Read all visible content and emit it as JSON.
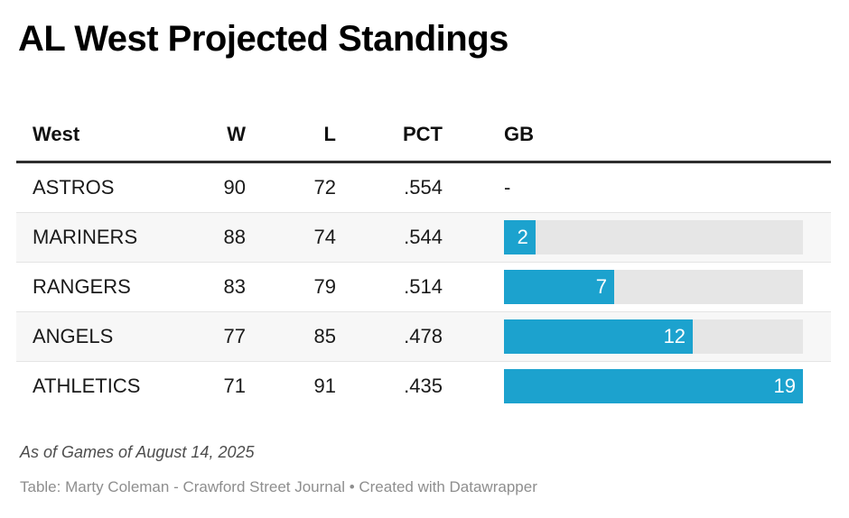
{
  "title": "AL West Projected Standings",
  "table": {
    "columns": {
      "team": "West",
      "w": "W",
      "l": "L",
      "pct": "PCT",
      "gb": "GB"
    },
    "rows": [
      {
        "team": "ASTROS",
        "w": "90",
        "l": "72",
        "pct": ".554",
        "gb": null,
        "gb_display": "-"
      },
      {
        "team": "MARINERS",
        "w": "88",
        "l": "74",
        "pct": ".544",
        "gb": 2,
        "gb_display": "2"
      },
      {
        "team": "RANGERS",
        "w": "83",
        "l": "79",
        "pct": ".514",
        "gb": 7,
        "gb_display": "7"
      },
      {
        "team": "ANGELS",
        "w": "77",
        "l": "85",
        "pct": ".478",
        "gb": 12,
        "gb_display": "12"
      },
      {
        "team": "ATHLETICS",
        "w": "71",
        "l": "91",
        "pct": ".435",
        "gb": 19,
        "gb_display": "19"
      }
    ],
    "gb_axis_max": 19
  },
  "footer": {
    "note": "As of Games of August 14, 2025",
    "attribution": "Table: Marty Coleman - Crawford Street Journal • Created with Datawrapper"
  },
  "colors": {
    "bar_fill": "#1ca2ce",
    "bar_track": "#e6e6e6",
    "row_stripe": "#f7f7f7",
    "header_rule": "#2e2e2e"
  },
  "chart_data": {
    "type": "table",
    "title": "AL West Projected Standings",
    "columns": [
      "West",
      "W",
      "L",
      "PCT",
      "GB"
    ],
    "rows": [
      [
        "ASTROS",
        90,
        72,
        ".554",
        "-"
      ],
      [
        "MARINERS",
        88,
        74,
        ".544",
        2
      ],
      [
        "RANGERS",
        83,
        79,
        ".514",
        7
      ],
      [
        "ANGELS",
        77,
        85,
        ".478",
        12
      ],
      [
        "ATHLETICS",
        71,
        91,
        ".435",
        19
      ]
    ],
    "bar_column": "GB",
    "bar_values": [
      null,
      2,
      7,
      12,
      19
    ],
    "bar_axis_range": [
      0,
      19
    ],
    "bar_color": "#1ca2ce",
    "note": "As of Games of August 14, 2025",
    "byline": "Table: Marty Coleman - Crawford Street Journal",
    "credit": "Created with Datawrapper"
  }
}
